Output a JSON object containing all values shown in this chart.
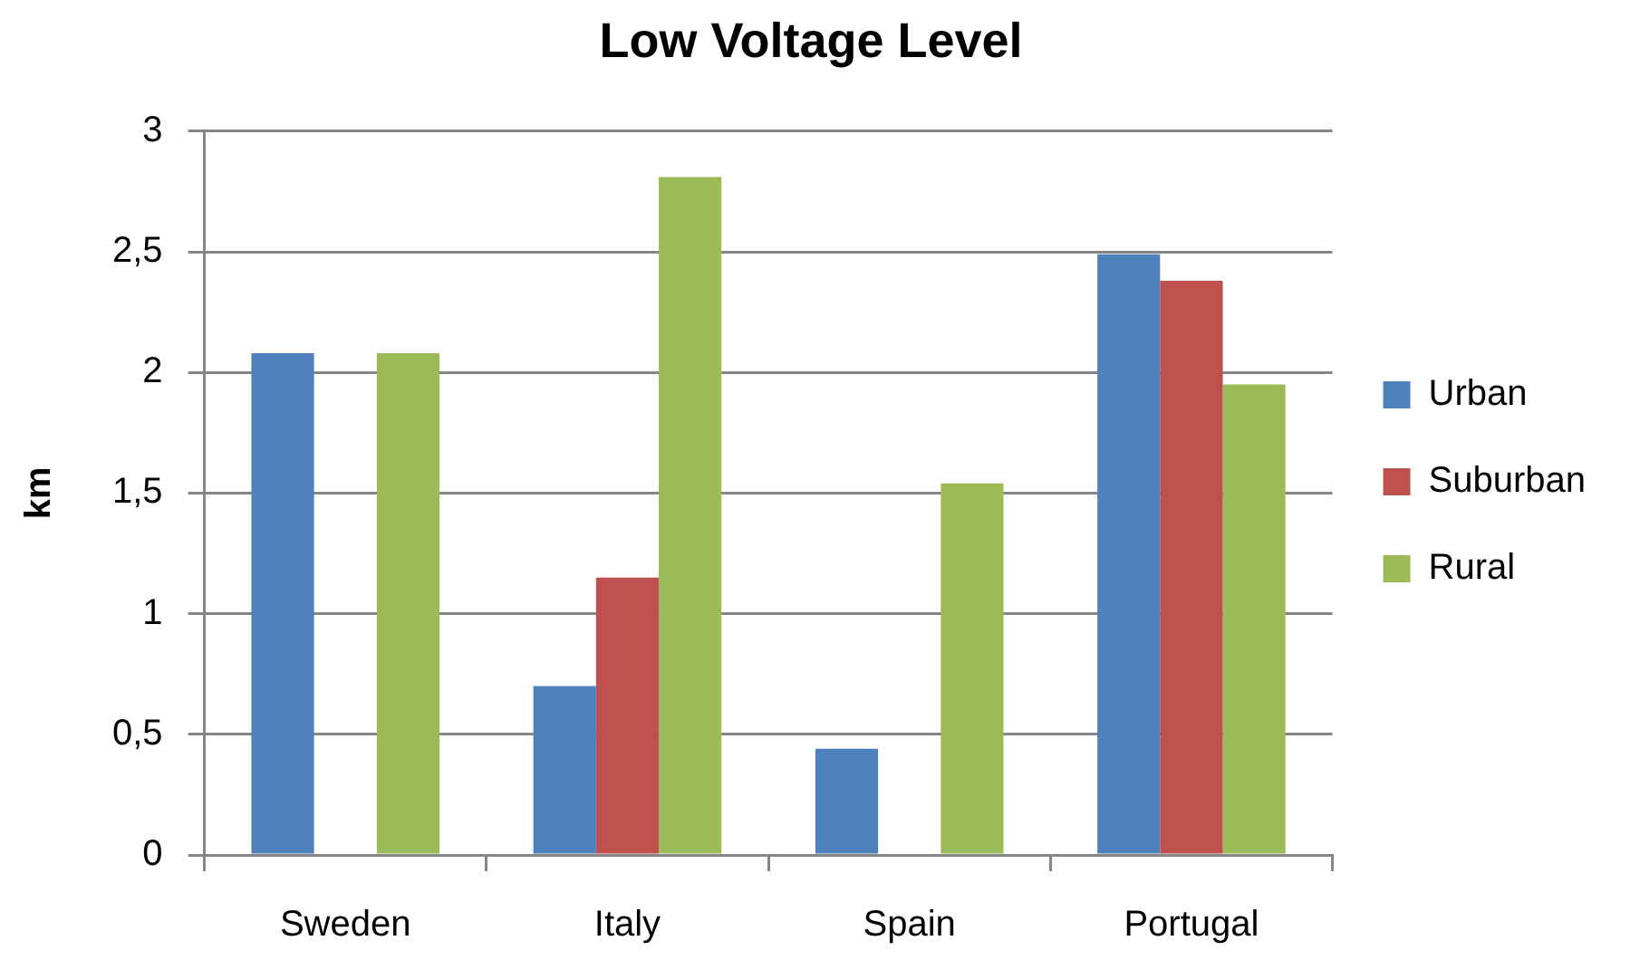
{
  "chart_data": {
    "type": "bar",
    "title": "Low Voltage Level",
    "ylabel": "km",
    "categories": [
      "Sweden",
      "Italy",
      "Spain",
      "Portugal"
    ],
    "series": [
      {
        "name": "Urban",
        "color": "#4f81bd",
        "values": [
          2.08,
          0.7,
          0.44,
          2.49
        ]
      },
      {
        "name": "Suburban",
        "color": "#c0504d",
        "values": [
          null,
          1.15,
          null,
          2.38
        ]
      },
      {
        "name": "Rural",
        "color": "#9bbb59",
        "values": [
          2.08,
          2.81,
          1.54,
          1.95
        ]
      }
    ],
    "ylim": [
      0,
      3
    ],
    "yticks": [
      0,
      {
        "value": 0.5,
        "label": "0,5"
      },
      1,
      {
        "value": 1.5,
        "label": "1,5"
      },
      2,
      {
        "value": 2.5,
        "label": "2,5"
      },
      3
    ],
    "grid": "y",
    "legend": "right"
  }
}
